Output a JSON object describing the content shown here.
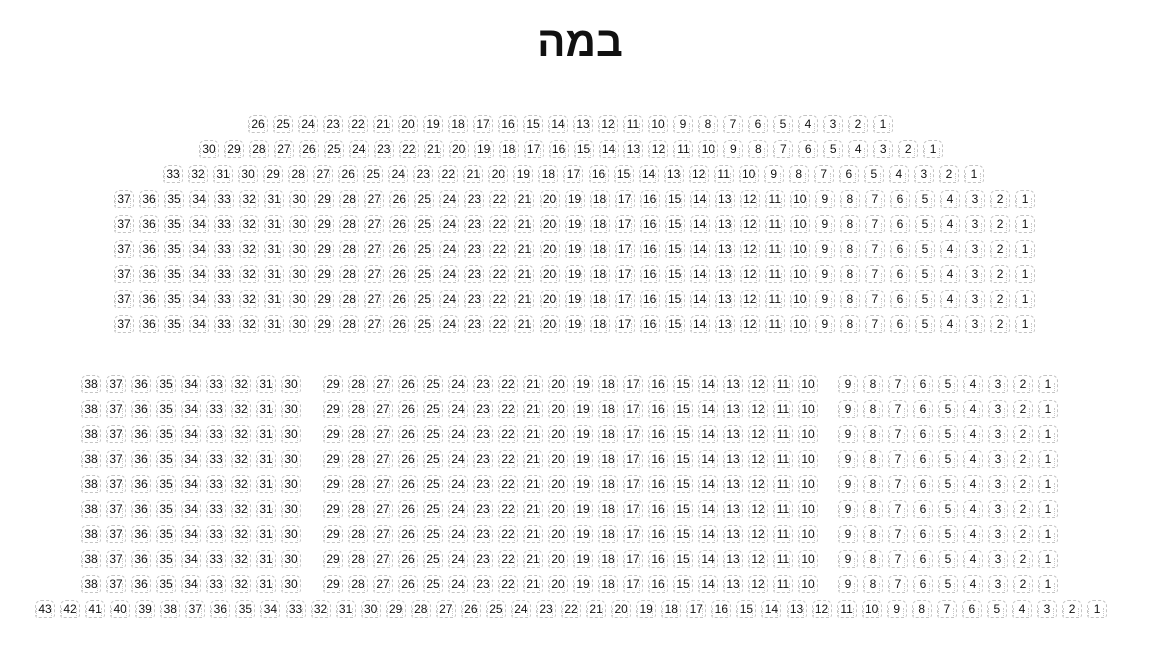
{
  "stage": {
    "label": "במה"
  },
  "rows": [
    {
      "sections": [
        {
          "start": 26,
          "end": 1
        }
      ]
    },
    {
      "sections": [
        {
          "start": 30,
          "end": 1
        }
      ]
    },
    {
      "sections": [
        {
          "start": 33,
          "end": 1
        }
      ]
    },
    {
      "sections": [
        {
          "start": 37,
          "end": 1
        }
      ]
    },
    {
      "sections": [
        {
          "start": 37,
          "end": 1
        }
      ]
    },
    {
      "sections": [
        {
          "start": 37,
          "end": 1
        }
      ]
    },
    {
      "sections": [
        {
          "start": 37,
          "end": 1
        }
      ]
    },
    {
      "sections": [
        {
          "start": 37,
          "end": 1
        }
      ]
    },
    {
      "sections": [
        {
          "start": 37,
          "end": 1
        }
      ]
    },
    {
      "sections": [
        {
          "start": 38,
          "end": 30
        },
        {
          "start": 29,
          "end": 10
        },
        {
          "start": 9,
          "end": 1
        }
      ]
    },
    {
      "sections": [
        {
          "start": 38,
          "end": 30
        },
        {
          "start": 29,
          "end": 10
        },
        {
          "start": 9,
          "end": 1
        }
      ]
    },
    {
      "sections": [
        {
          "start": 38,
          "end": 30
        },
        {
          "start": 29,
          "end": 10
        },
        {
          "start": 9,
          "end": 1
        }
      ]
    },
    {
      "sections": [
        {
          "start": 38,
          "end": 30
        },
        {
          "start": 29,
          "end": 10
        },
        {
          "start": 9,
          "end": 1
        }
      ]
    },
    {
      "sections": [
        {
          "start": 38,
          "end": 30
        },
        {
          "start": 29,
          "end": 10
        },
        {
          "start": 9,
          "end": 1
        }
      ]
    },
    {
      "sections": [
        {
          "start": 38,
          "end": 30
        },
        {
          "start": 29,
          "end": 10
        },
        {
          "start": 9,
          "end": 1
        }
      ]
    },
    {
      "sections": [
        {
          "start": 38,
          "end": 30
        },
        {
          "start": 29,
          "end": 10
        },
        {
          "start": 9,
          "end": 1
        }
      ]
    },
    {
      "sections": [
        {
          "start": 38,
          "end": 30
        },
        {
          "start": 29,
          "end": 10
        },
        {
          "start": 9,
          "end": 1
        }
      ]
    },
    {
      "sections": [
        {
          "start": 38,
          "end": 30
        },
        {
          "start": 29,
          "end": 10
        },
        {
          "start": 9,
          "end": 1
        }
      ]
    },
    {
      "sections": [
        {
          "start": 43,
          "end": 1
        }
      ]
    }
  ]
}
